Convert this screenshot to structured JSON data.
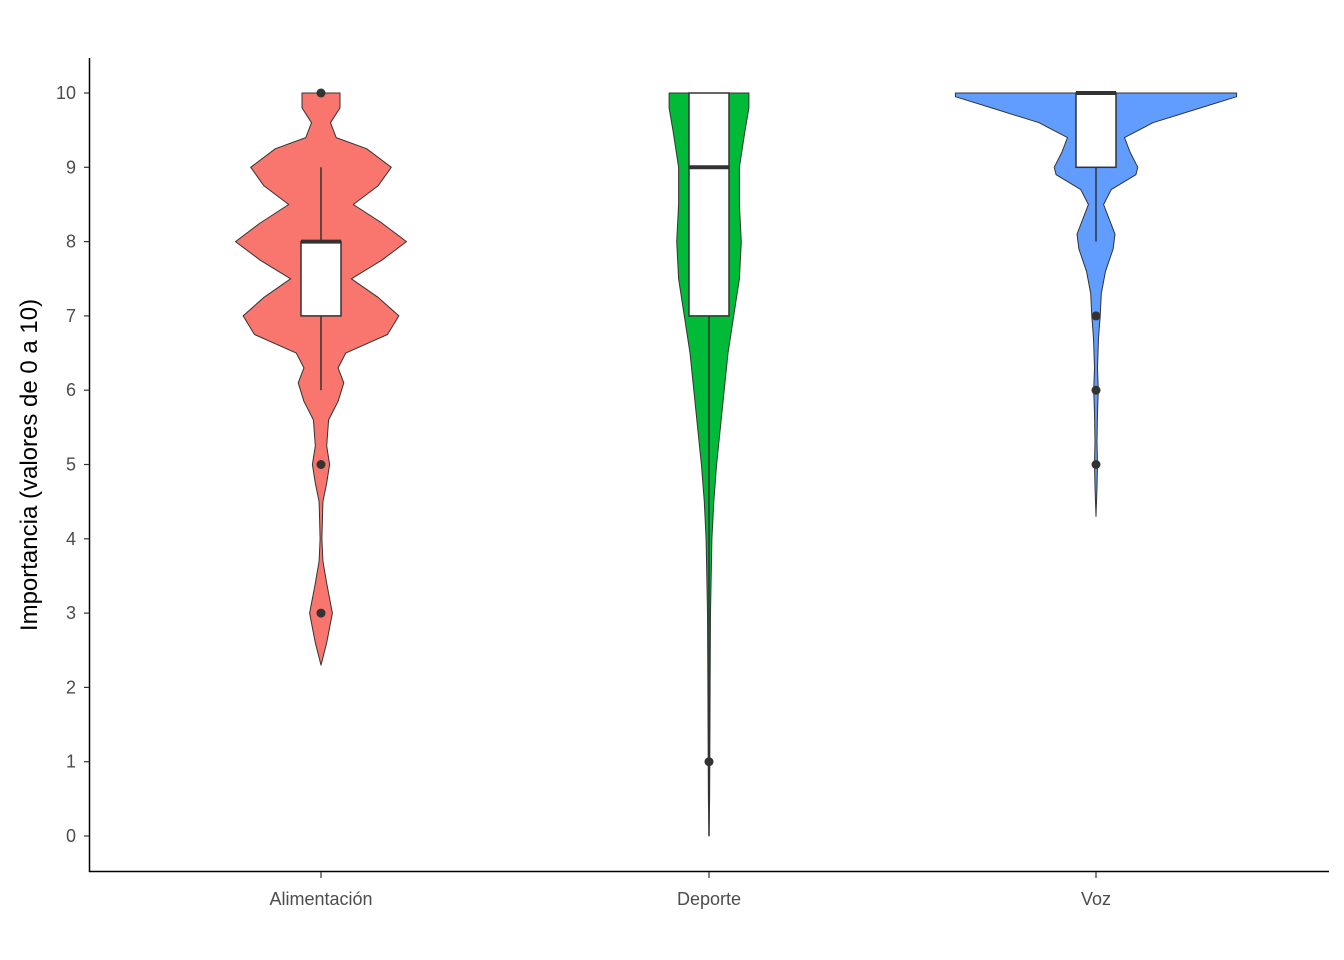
{
  "chart_data": {
    "type": "violin",
    "title": "",
    "xlabel": "",
    "ylabel": "Importancia (valores de 0 a 10)",
    "ylim": [
      -0.5,
      10.5
    ],
    "yticks": [
      0,
      1,
      2,
      3,
      4,
      5,
      6,
      7,
      8,
      9,
      10
    ],
    "ytick_labels": [
      "0",
      "1",
      "2",
      "3",
      "4",
      "5",
      "6",
      "7",
      "8",
      "9",
      "10"
    ],
    "categories": [
      "Alimentación",
      "Deporte",
      "Voz"
    ],
    "grid": false,
    "legend": "none",
    "series": [
      {
        "category": "Alimentación",
        "color": "#F8766D",
        "density_y": [
          2.3,
          2.6,
          3.0,
          3.4,
          3.7,
          4.0,
          4.5,
          4.75,
          5.0,
          5.25,
          5.6,
          5.85,
          6.1,
          6.3,
          6.5,
          6.75,
          7.0,
          7.25,
          7.5,
          7.75,
          8.0,
          8.25,
          8.5,
          8.75,
          9.0,
          9.25,
          9.4,
          9.6,
          9.8,
          10.0
        ],
        "density_w": [
          0.0,
          0.03,
          0.06,
          0.03,
          0.01,
          0.005,
          0.01,
          0.03,
          0.045,
          0.03,
          0.04,
          0.09,
          0.12,
          0.09,
          0.13,
          0.35,
          0.41,
          0.3,
          0.16,
          0.32,
          0.45,
          0.32,
          0.17,
          0.3,
          0.37,
          0.24,
          0.08,
          0.05,
          0.1,
          0.1
        ],
        "box": {
          "lower_whisker": 6,
          "q1": 7,
          "median": 8,
          "q3": 8,
          "upper_whisker": 9
        },
        "outliers": [
          10,
          5,
          3
        ]
      },
      {
        "category": "Deporte",
        "color": "#00BA38",
        "density_y": [
          0.0,
          0.5,
          1.0,
          2.0,
          3.0,
          4.0,
          4.5,
          5.0,
          5.5,
          6.0,
          6.5,
          7.0,
          7.5,
          8.0,
          8.5,
          9.0,
          9.5,
          9.8,
          10.0
        ],
        "density_w": [
          0.0,
          0.003,
          0.004,
          0.006,
          0.008,
          0.015,
          0.025,
          0.04,
          0.06,
          0.08,
          0.1,
          0.13,
          0.16,
          0.17,
          0.16,
          0.16,
          0.19,
          0.21,
          0.21
        ],
        "box": {
          "lower_whisker": 0,
          "q1": 7,
          "median": 9,
          "q3": 10,
          "upper_whisker": 10
        },
        "outliers": [
          1
        ]
      },
      {
        "category": "Voz",
        "color": "#619CFF",
        "density_y": [
          4.3,
          4.7,
          5.0,
          5.3,
          5.7,
          6.0,
          6.3,
          6.7,
          7.0,
          7.3,
          7.6,
          7.9,
          8.1,
          8.3,
          8.5,
          8.7,
          8.9,
          9.0,
          9.2,
          9.4,
          9.6,
          9.8,
          9.95,
          10.0
        ],
        "density_w": [
          0.0,
          0.005,
          0.008,
          0.005,
          0.008,
          0.012,
          0.008,
          0.013,
          0.022,
          0.028,
          0.05,
          0.09,
          0.1,
          0.07,
          0.04,
          0.08,
          0.21,
          0.22,
          0.18,
          0.15,
          0.3,
          0.55,
          0.74,
          0.74
        ],
        "box": {
          "lower_whisker": 8,
          "q1": 9,
          "median": 10,
          "q3": 10,
          "upper_whisker": 10
        },
        "outliers": [
          7,
          6,
          5
        ]
      }
    ]
  }
}
